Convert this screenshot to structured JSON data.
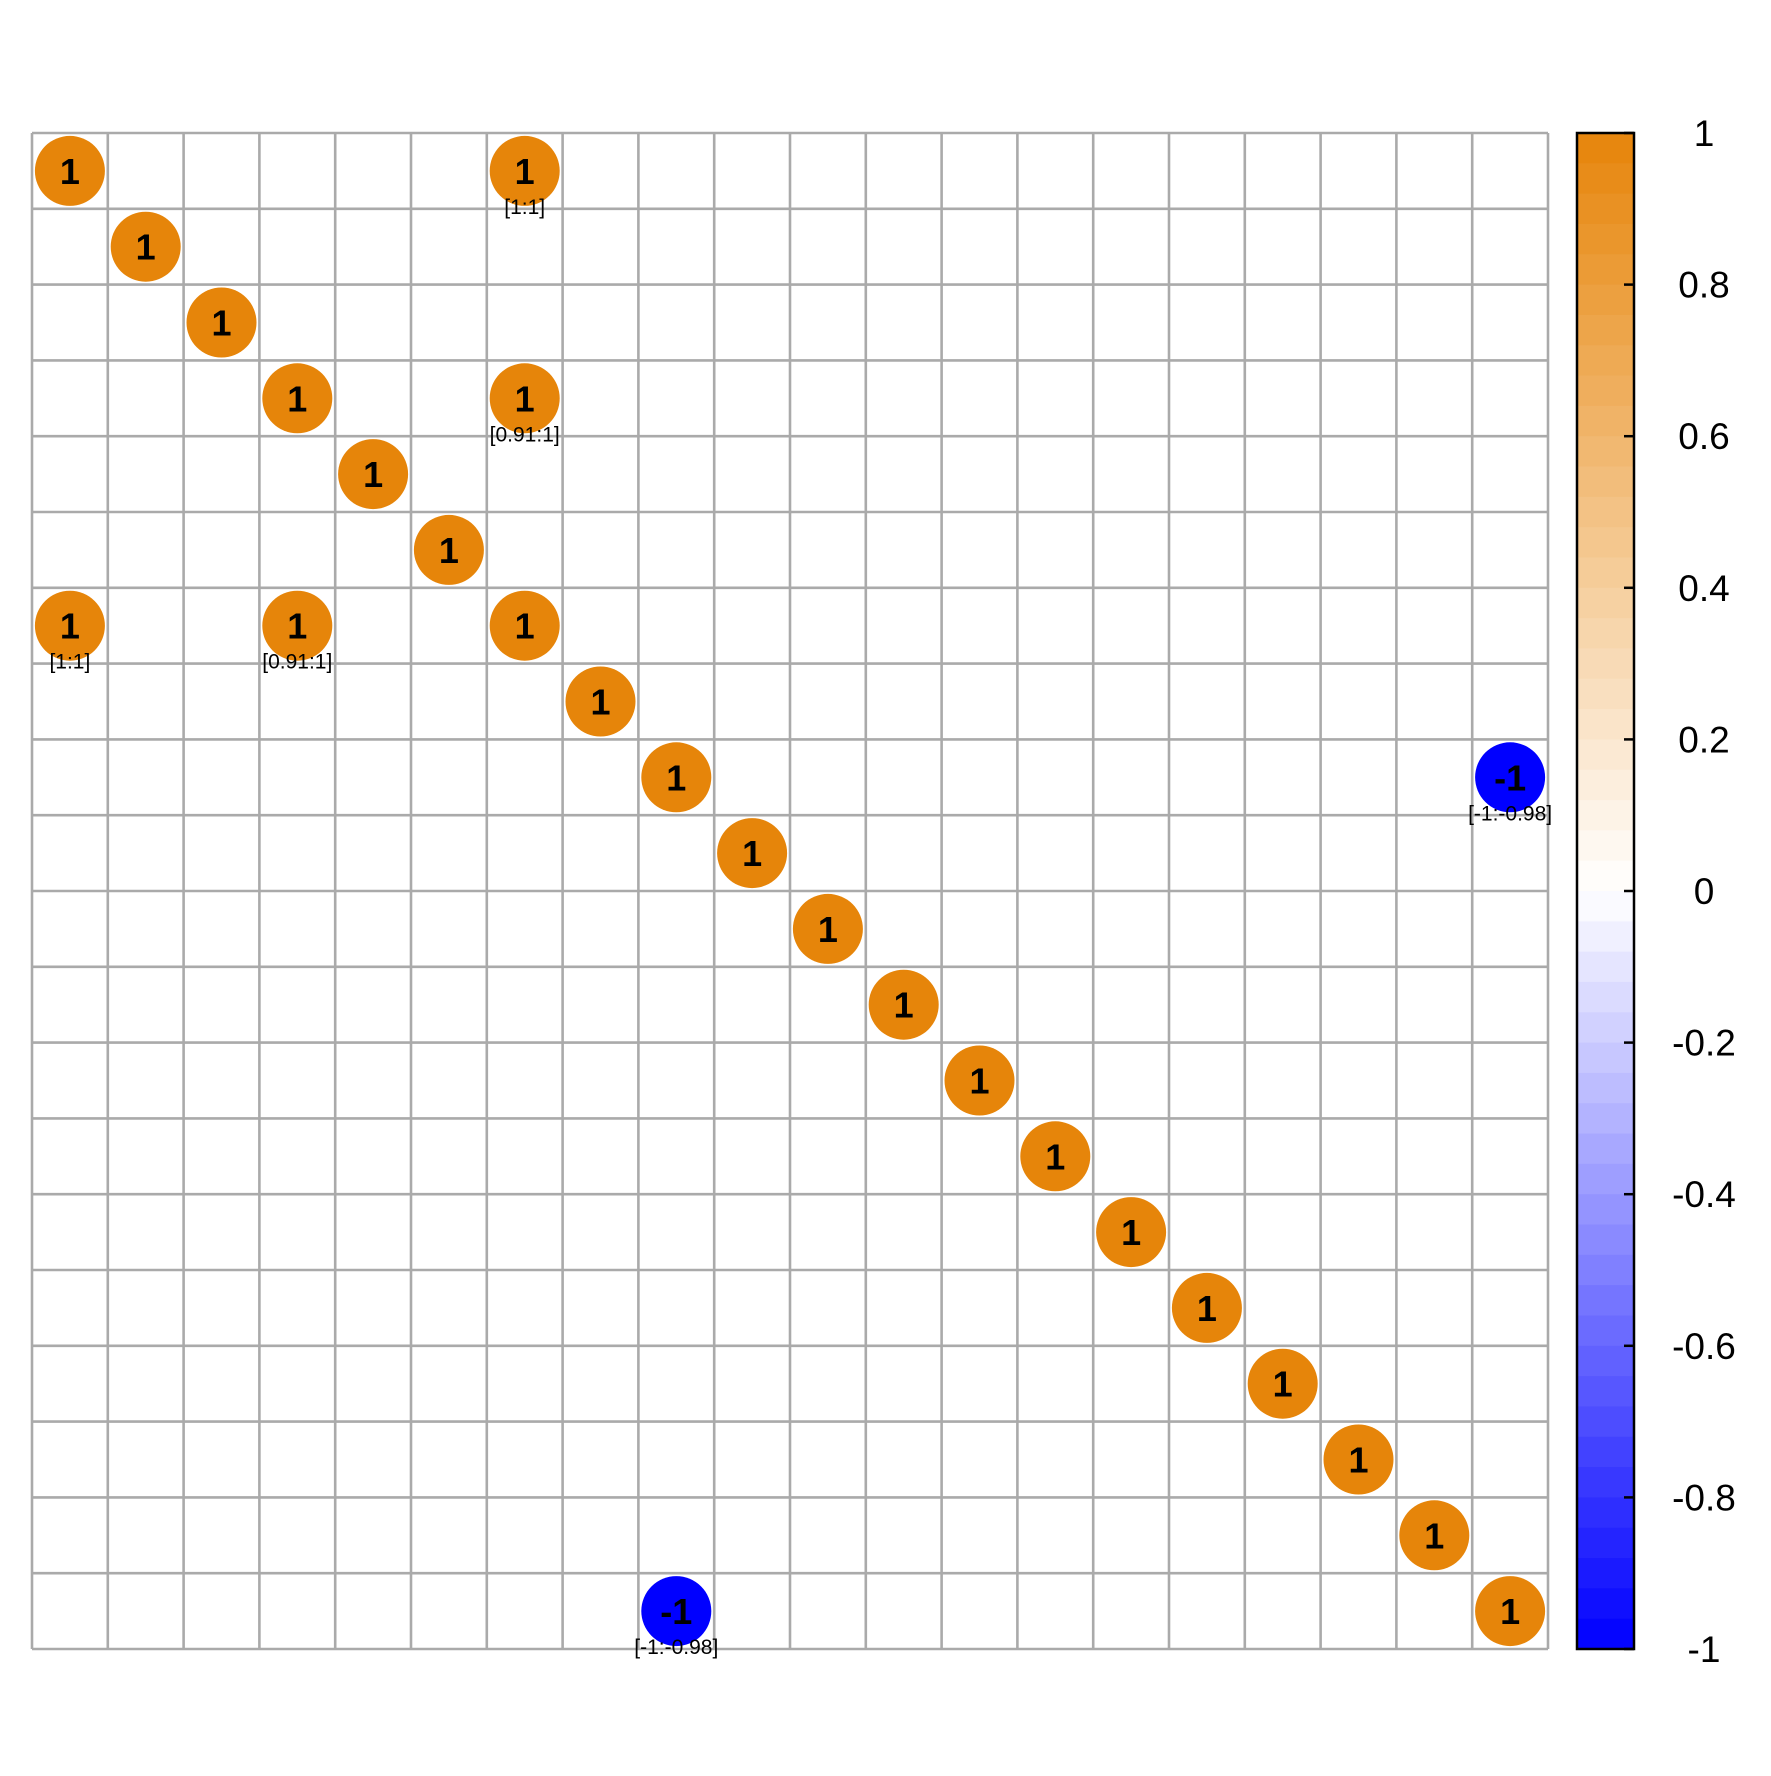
{
  "chart_data": {
    "type": "heatmap",
    "style": "circle",
    "n": 20,
    "grid": true,
    "legend_placement": "right",
    "colors": {
      "positive": "#e6850a",
      "negative": "#0000ff",
      "zero": "#ffffff",
      "grid": "#aaaaaa"
    },
    "colorbar": {
      "range": [
        -1,
        1
      ],
      "ticks": [
        "1",
        "0.8",
        "0.6",
        "0.4",
        "0.2",
        "0",
        "-0.2",
        "-0.4",
        "-0.6",
        "-0.8",
        "-1"
      ],
      "tick_values": [
        1,
        0.8,
        0.6,
        0.4,
        0.2,
        0,
        -0.2,
        -0.4,
        -0.6,
        -0.8,
        -1
      ]
    },
    "cells": [
      {
        "row": 0,
        "col": 0,
        "value": 1,
        "label": "1",
        "ci": ""
      },
      {
        "row": 0,
        "col": 6,
        "value": 1,
        "label": "1",
        "ci": "[1:1]"
      },
      {
        "row": 1,
        "col": 1,
        "value": 1,
        "label": "1",
        "ci": ""
      },
      {
        "row": 2,
        "col": 2,
        "value": 1,
        "label": "1",
        "ci": ""
      },
      {
        "row": 3,
        "col": 3,
        "value": 1,
        "label": "1",
        "ci": ""
      },
      {
        "row": 3,
        "col": 6,
        "value": 1,
        "label": "1",
        "ci": "[0.91:1]"
      },
      {
        "row": 4,
        "col": 4,
        "value": 1,
        "label": "1",
        "ci": ""
      },
      {
        "row": 5,
        "col": 5,
        "value": 1,
        "label": "1",
        "ci": ""
      },
      {
        "row": 6,
        "col": 0,
        "value": 1,
        "label": "1",
        "ci": "[1:1]"
      },
      {
        "row": 6,
        "col": 3,
        "value": 1,
        "label": "1",
        "ci": "[0.91:1]"
      },
      {
        "row": 6,
        "col": 6,
        "value": 1,
        "label": "1",
        "ci": ""
      },
      {
        "row": 7,
        "col": 7,
        "value": 1,
        "label": "1",
        "ci": ""
      },
      {
        "row": 8,
        "col": 8,
        "value": 1,
        "label": "1",
        "ci": ""
      },
      {
        "row": 8,
        "col": 19,
        "value": -1,
        "label": "-1",
        "ci": "[-1:-0.98]"
      },
      {
        "row": 9,
        "col": 9,
        "value": 1,
        "label": "1",
        "ci": ""
      },
      {
        "row": 10,
        "col": 10,
        "value": 1,
        "label": "1",
        "ci": ""
      },
      {
        "row": 11,
        "col": 11,
        "value": 1,
        "label": "1",
        "ci": ""
      },
      {
        "row": 12,
        "col": 12,
        "value": 1,
        "label": "1",
        "ci": ""
      },
      {
        "row": 13,
        "col": 13,
        "value": 1,
        "label": "1",
        "ci": ""
      },
      {
        "row": 14,
        "col": 14,
        "value": 1,
        "label": "1",
        "ci": ""
      },
      {
        "row": 15,
        "col": 15,
        "value": 1,
        "label": "1",
        "ci": ""
      },
      {
        "row": 16,
        "col": 16,
        "value": 1,
        "label": "1",
        "ci": ""
      },
      {
        "row": 17,
        "col": 17,
        "value": 1,
        "label": "1",
        "ci": ""
      },
      {
        "row": 18,
        "col": 18,
        "value": 1,
        "label": "1",
        "ci": ""
      },
      {
        "row": 19,
        "col": 8,
        "value": -1,
        "label": "-1",
        "ci": "[-1:-0.98]"
      },
      {
        "row": 19,
        "col": 19,
        "value": 1,
        "label": "1",
        "ci": ""
      }
    ]
  }
}
